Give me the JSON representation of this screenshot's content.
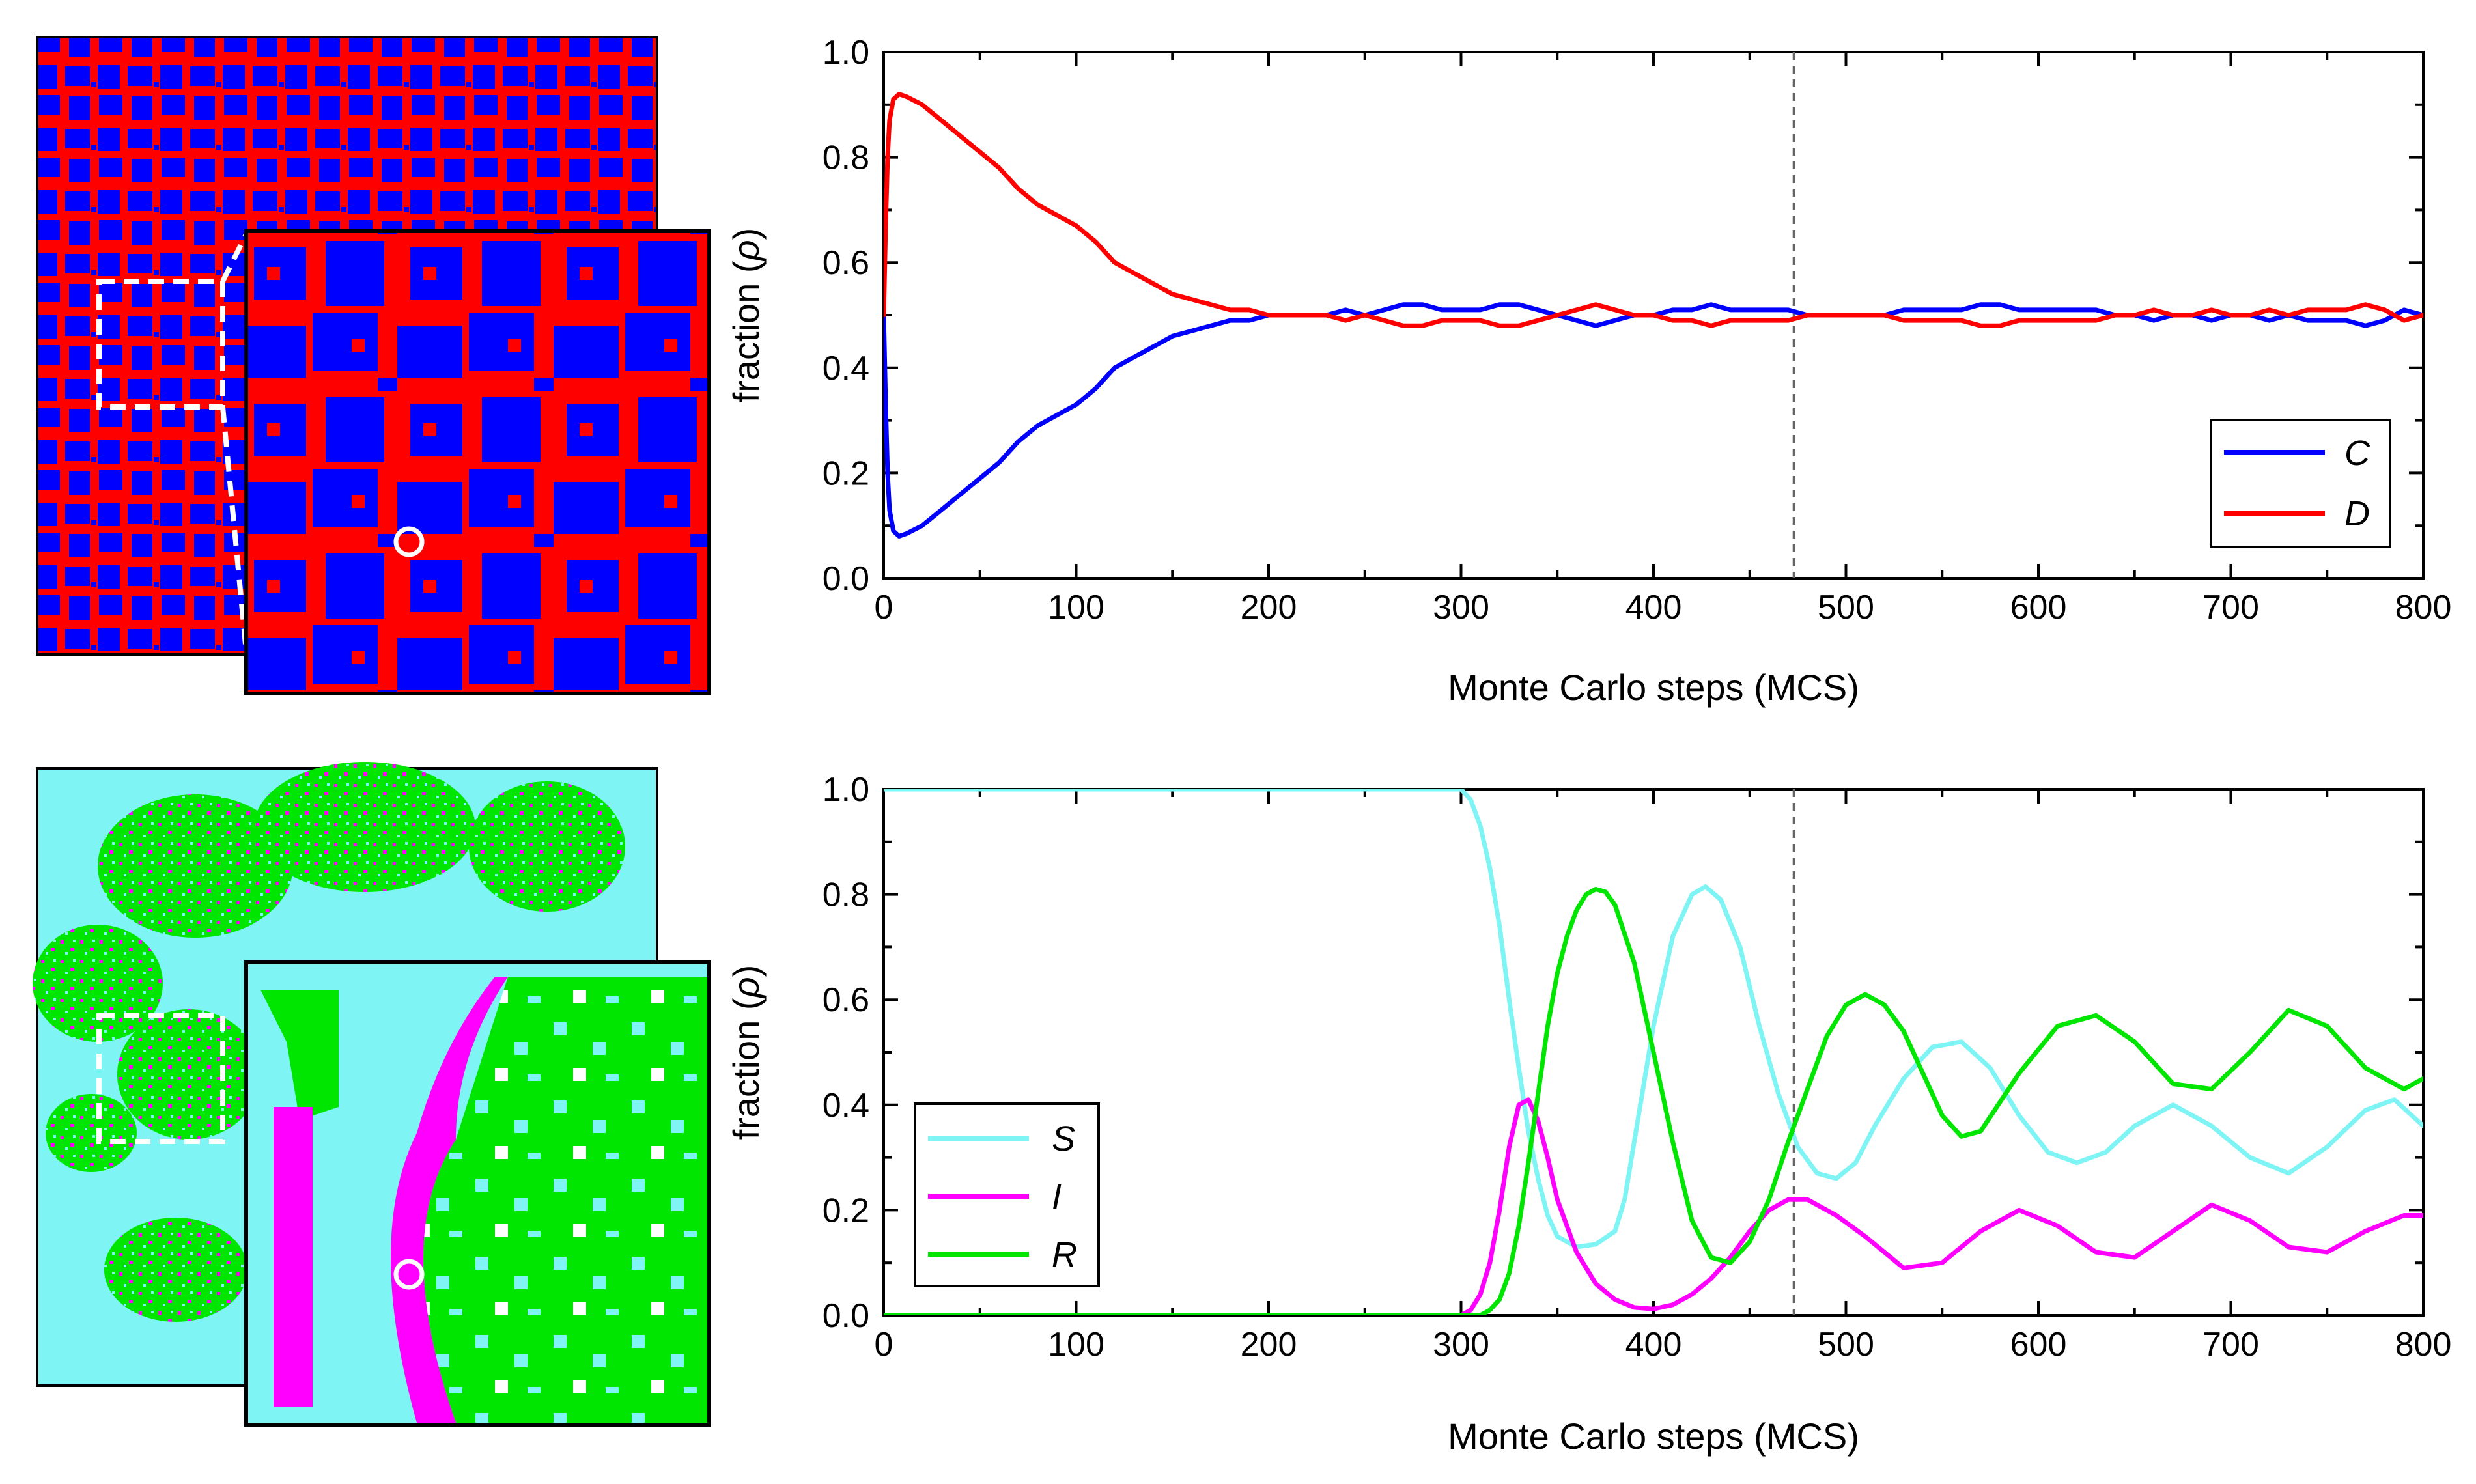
{
  "figure": {
    "colors": {
      "C": "#0000ff",
      "D": "#ff0000",
      "S": "#7ff4f4",
      "I": "#ff00ff",
      "R": "#00e600",
      "marker": "#ffffff",
      "vline": "#666666"
    }
  },
  "chart_data": [
    {
      "type": "line",
      "panel": "top",
      "xlabel": "Monte Carlo steps (MCS)",
      "ylabel_prefix": "fraction (",
      "ylabel_symbol": "ρ",
      "ylabel_suffix": ")",
      "xlim": [
        0,
        800
      ],
      "ylim": [
        0,
        1.0
      ],
      "x_ticks": [
        0,
        100,
        200,
        300,
        400,
        500,
        600,
        700,
        800
      ],
      "y_ticks": [
        "0.0",
        "0.2",
        "0.4",
        "0.6",
        "0.8",
        "1.0"
      ],
      "vline_x": 473,
      "legend_position": "bottom-right",
      "series": [
        {
          "name": "C",
          "x": [
            0,
            1,
            2,
            3,
            5,
            8,
            12,
            20,
            30,
            40,
            50,
            60,
            70,
            80,
            90,
            100,
            110,
            120,
            130,
            140,
            150,
            160,
            170,
            180,
            190,
            200,
            210,
            220,
            230,
            240,
            250,
            260,
            270,
            280,
            290,
            300,
            310,
            320,
            330,
            340,
            350,
            360,
            370,
            380,
            390,
            400,
            410,
            420,
            430,
            440,
            450,
            460,
            470,
            480,
            490,
            500,
            510,
            520,
            530,
            540,
            550,
            560,
            570,
            580,
            590,
            600,
            610,
            620,
            630,
            640,
            650,
            660,
            670,
            680,
            690,
            700,
            710,
            720,
            730,
            740,
            750,
            760,
            770,
            780,
            790,
            800
          ],
          "y": [
            0.5,
            0.33,
            0.2,
            0.13,
            0.09,
            0.08,
            0.085,
            0.1,
            0.13,
            0.16,
            0.19,
            0.22,
            0.26,
            0.29,
            0.31,
            0.33,
            0.36,
            0.4,
            0.42,
            0.44,
            0.46,
            0.47,
            0.48,
            0.49,
            0.49,
            0.5,
            0.5,
            0.5,
            0.5,
            0.51,
            0.5,
            0.51,
            0.52,
            0.52,
            0.51,
            0.51,
            0.51,
            0.52,
            0.52,
            0.51,
            0.5,
            0.49,
            0.48,
            0.49,
            0.5,
            0.5,
            0.51,
            0.51,
            0.52,
            0.51,
            0.51,
            0.51,
            0.51,
            0.5,
            0.5,
            0.5,
            0.5,
            0.5,
            0.51,
            0.51,
            0.51,
            0.51,
            0.52,
            0.52,
            0.51,
            0.51,
            0.51,
            0.51,
            0.51,
            0.5,
            0.5,
            0.49,
            0.5,
            0.5,
            0.49,
            0.5,
            0.5,
            0.49,
            0.5,
            0.49,
            0.49,
            0.49,
            0.48,
            0.49,
            0.51,
            0.5
          ]
        },
        {
          "name": "D",
          "x": [
            0,
            1,
            2,
            3,
            5,
            8,
            12,
            20,
            30,
            40,
            50,
            60,
            70,
            80,
            90,
            100,
            110,
            120,
            130,
            140,
            150,
            160,
            170,
            180,
            190,
            200,
            210,
            220,
            230,
            240,
            250,
            260,
            270,
            280,
            290,
            300,
            310,
            320,
            330,
            340,
            350,
            360,
            370,
            380,
            390,
            400,
            410,
            420,
            430,
            440,
            450,
            460,
            470,
            480,
            490,
            500,
            510,
            520,
            530,
            540,
            550,
            560,
            570,
            580,
            590,
            600,
            610,
            620,
            630,
            640,
            650,
            660,
            670,
            680,
            690,
            700,
            710,
            720,
            730,
            740,
            750,
            760,
            770,
            780,
            790,
            800
          ],
          "y": [
            0.5,
            0.67,
            0.8,
            0.87,
            0.91,
            0.92,
            0.915,
            0.9,
            0.87,
            0.84,
            0.81,
            0.78,
            0.74,
            0.71,
            0.69,
            0.67,
            0.64,
            0.6,
            0.58,
            0.56,
            0.54,
            0.53,
            0.52,
            0.51,
            0.51,
            0.5,
            0.5,
            0.5,
            0.5,
            0.49,
            0.5,
            0.49,
            0.48,
            0.48,
            0.49,
            0.49,
            0.49,
            0.48,
            0.48,
            0.49,
            0.5,
            0.51,
            0.52,
            0.51,
            0.5,
            0.5,
            0.49,
            0.49,
            0.48,
            0.49,
            0.49,
            0.49,
            0.49,
            0.5,
            0.5,
            0.5,
            0.5,
            0.5,
            0.49,
            0.49,
            0.49,
            0.49,
            0.48,
            0.48,
            0.49,
            0.49,
            0.49,
            0.49,
            0.49,
            0.5,
            0.5,
            0.51,
            0.5,
            0.5,
            0.51,
            0.5,
            0.5,
            0.51,
            0.5,
            0.51,
            0.51,
            0.51,
            0.52,
            0.51,
            0.49,
            0.5
          ]
        }
      ]
    },
    {
      "type": "line",
      "panel": "bottom",
      "xlabel": "Monte Carlo steps (MCS)",
      "ylabel_prefix": "fraction (",
      "ylabel_symbol": "ρ",
      "ylabel_suffix": ")",
      "xlim": [
        0,
        800
      ],
      "ylim": [
        0,
        1.0
      ],
      "x_ticks": [
        0,
        100,
        200,
        300,
        400,
        500,
        600,
        700,
        800
      ],
      "y_ticks": [
        "0.0",
        "0.2",
        "0.4",
        "0.6",
        "0.8",
        "1.0"
      ],
      "vline_x": 473,
      "legend_position": "bottom-left",
      "series": [
        {
          "name": "S",
          "x": [
            0,
            100,
            200,
            290,
            300,
            305,
            310,
            315,
            320,
            325,
            330,
            335,
            340,
            345,
            350,
            360,
            370,
            380,
            385,
            390,
            400,
            410,
            420,
            427,
            435,
            445,
            455,
            465,
            475,
            485,
            495,
            505,
            515,
            530,
            545,
            560,
            575,
            590,
            605,
            620,
            635,
            650,
            670,
            690,
            710,
            730,
            750,
            770,
            785,
            800
          ],
          "y": [
            1.0,
            1.0,
            1.0,
            1.0,
            1.0,
            0.98,
            0.93,
            0.85,
            0.74,
            0.6,
            0.47,
            0.35,
            0.26,
            0.19,
            0.15,
            0.13,
            0.135,
            0.16,
            0.22,
            0.33,
            0.55,
            0.72,
            0.8,
            0.815,
            0.79,
            0.7,
            0.55,
            0.42,
            0.32,
            0.27,
            0.26,
            0.29,
            0.36,
            0.45,
            0.51,
            0.52,
            0.47,
            0.38,
            0.31,
            0.29,
            0.31,
            0.36,
            0.4,
            0.36,
            0.3,
            0.27,
            0.32,
            0.39,
            0.41,
            0.36
          ]
        },
        {
          "name": "I",
          "x": [
            0,
            100,
            200,
            300,
            305,
            310,
            315,
            320,
            325,
            330,
            335,
            340,
            345,
            350,
            360,
            370,
            380,
            390,
            400,
            410,
            420,
            430,
            440,
            450,
            460,
            470,
            480,
            495,
            510,
            530,
            550,
            570,
            590,
            610,
            630,
            650,
            670,
            690,
            710,
            730,
            750,
            770,
            790,
            800
          ],
          "y": [
            0.0,
            0.0,
            0.0,
            0.0,
            0.01,
            0.04,
            0.1,
            0.2,
            0.32,
            0.4,
            0.41,
            0.37,
            0.3,
            0.22,
            0.12,
            0.06,
            0.03,
            0.015,
            0.012,
            0.02,
            0.04,
            0.07,
            0.11,
            0.16,
            0.2,
            0.22,
            0.22,
            0.19,
            0.15,
            0.09,
            0.1,
            0.16,
            0.2,
            0.17,
            0.12,
            0.11,
            0.16,
            0.21,
            0.18,
            0.13,
            0.12,
            0.16,
            0.19,
            0.19
          ]
        },
        {
          "name": "R",
          "x": [
            0,
            100,
            200,
            300,
            310,
            315,
            320,
            325,
            330,
            335,
            340,
            345,
            350,
            355,
            360,
            365,
            370,
            375,
            380,
            390,
            400,
            410,
            420,
            430,
            440,
            450,
            460,
            470,
            480,
            490,
            500,
            510,
            520,
            530,
            540,
            550,
            560,
            570,
            590,
            610,
            630,
            650,
            670,
            690,
            710,
            730,
            750,
            770,
            790,
            800
          ],
          "y": [
            0.0,
            0.0,
            0.0,
            0.0,
            0.0,
            0.01,
            0.03,
            0.08,
            0.17,
            0.29,
            0.42,
            0.55,
            0.65,
            0.72,
            0.77,
            0.8,
            0.81,
            0.805,
            0.78,
            0.67,
            0.5,
            0.33,
            0.18,
            0.11,
            0.1,
            0.14,
            0.22,
            0.33,
            0.43,
            0.53,
            0.59,
            0.61,
            0.59,
            0.54,
            0.46,
            0.38,
            0.34,
            0.35,
            0.46,
            0.55,
            0.57,
            0.52,
            0.44,
            0.43,
            0.5,
            0.58,
            0.55,
            0.47,
            0.43,
            0.45
          ]
        }
      ]
    }
  ]
}
